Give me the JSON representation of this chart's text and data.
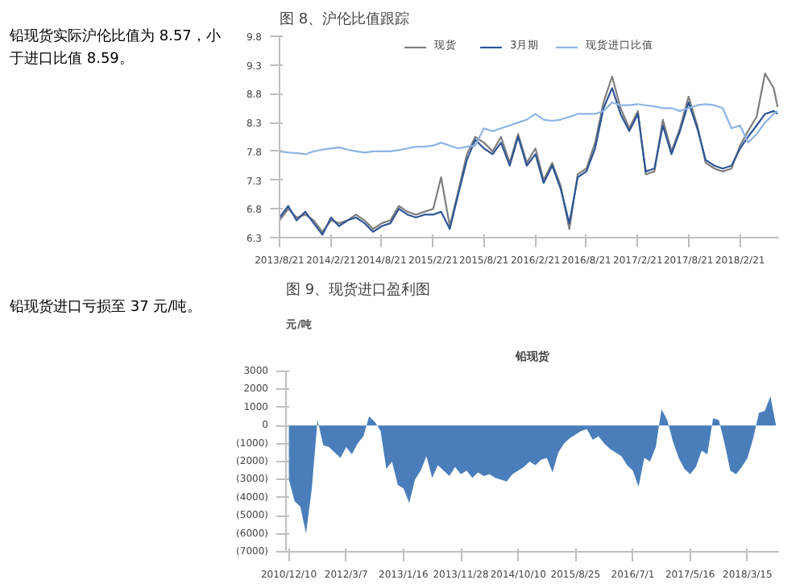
{
  "chart_data": [
    {
      "type": "line",
      "title": "图 8、沪伦比值跟踪",
      "annotations": [
        "铅现货实际沪伦比值为 8.57，小于进口比值 8.59。"
      ],
      "legend": "top",
      "x": [
        "2013-08-21",
        "2013-09-21",
        "2013-10-21",
        "2013-11-21",
        "2013-12-21",
        "2014-01-21",
        "2014-02-21",
        "2014-03-21",
        "2014-04-21",
        "2014-05-21",
        "2014-06-21",
        "2014-07-21",
        "2014-08-21",
        "2014-09-21",
        "2014-10-21",
        "2014-11-21",
        "2014-12-21",
        "2015-01-21",
        "2015-02-21",
        "2015-03-21",
        "2015-04-21",
        "2015-05-21",
        "2015-06-21",
        "2015-07-21",
        "2015-08-21",
        "2015-09-21",
        "2015-10-21",
        "2015-11-21",
        "2015-12-21",
        "2016-01-21",
        "2016-02-21",
        "2016-03-21",
        "2016-04-21",
        "2016-05-21",
        "2016-06-21",
        "2016-07-21",
        "2016-08-21",
        "2016-09-21",
        "2016-10-21",
        "2016-11-21",
        "2016-12-21",
        "2017-01-21",
        "2017-02-21",
        "2017-03-21",
        "2017-04-21",
        "2017-05-21",
        "2017-06-21",
        "2017-07-21",
        "2017-08-21",
        "2017-09-21",
        "2017-10-21",
        "2017-11-21",
        "2017-12-21",
        "2018-01-21",
        "2018-02-21",
        "2018-03-21",
        "2018-04-21",
        "2018-05-21",
        "2018-06-21",
        "2018-07-05"
      ],
      "series": [
        {
          "name": "现货",
          "color": "#7f7f7f",
          "values": [
            6.6,
            6.8,
            6.65,
            6.7,
            6.6,
            6.4,
            6.6,
            6.55,
            6.6,
            6.7,
            6.6,
            6.45,
            6.55,
            6.6,
            6.85,
            6.75,
            6.7,
            6.75,
            6.8,
            7.35,
            6.5,
            7.1,
            7.75,
            8.05,
            7.95,
            7.8,
            8.05,
            7.6,
            8.1,
            7.6,
            7.85,
            7.3,
            7.6,
            7.2,
            6.45,
            7.4,
            7.5,
            7.95,
            8.65,
            9.1,
            8.55,
            8.2,
            8.5,
            7.4,
            7.45,
            8.35,
            7.8,
            8.2,
            8.75,
            8.25,
            7.6,
            7.5,
            7.45,
            7.5,
            7.9,
            8.15,
            8.4,
            9.15,
            8.9,
            8.57
          ]
        },
        {
          "name": "3月期",
          "color": "#2e5597",
          "values": [
            6.65,
            6.85,
            6.6,
            6.75,
            6.55,
            6.35,
            6.65,
            6.5,
            6.6,
            6.65,
            6.55,
            6.4,
            6.5,
            6.55,
            6.8,
            6.7,
            6.65,
            6.7,
            6.7,
            6.75,
            6.45,
            7.05,
            7.65,
            8.0,
            7.85,
            7.75,
            7.95,
            7.55,
            8.05,
            7.55,
            7.75,
            7.25,
            7.55,
            7.15,
            6.55,
            7.35,
            7.45,
            7.85,
            8.55,
            8.9,
            8.45,
            8.15,
            8.45,
            7.45,
            7.5,
            8.25,
            7.75,
            8.15,
            8.65,
            8.2,
            7.65,
            7.55,
            7.5,
            7.55,
            7.85,
            8.05,
            8.25,
            8.45,
            8.5,
            8.45
          ]
        },
        {
          "name": "现货进口比值",
          "color": "#8eb4e3",
          "values": [
            7.8,
            7.78,
            7.77,
            7.75,
            7.8,
            7.83,
            7.85,
            7.87,
            7.83,
            7.8,
            7.78,
            7.8,
            7.8,
            7.8,
            7.82,
            7.85,
            7.88,
            7.88,
            7.9,
            7.95,
            7.9,
            7.85,
            7.88,
            7.9,
            8.2,
            8.15,
            8.2,
            8.25,
            8.3,
            8.35,
            8.45,
            8.35,
            8.33,
            8.35,
            8.4,
            8.45,
            8.45,
            8.45,
            8.5,
            8.65,
            8.6,
            8.6,
            8.62,
            8.6,
            8.58,
            8.55,
            8.55,
            8.5,
            8.55,
            8.6,
            8.62,
            8.6,
            8.55,
            8.2,
            8.25,
            7.95,
            8.1,
            8.3,
            8.45,
            8.5
          ]
        }
      ],
      "xlim": [
        "2013-08-21",
        "2018-07-10"
      ],
      "xticks": [
        {
          "value": "2013-08-21",
          "label": "2013/8/21"
        },
        {
          "value": "2014-02-21",
          "label": "2014/2/21"
        },
        {
          "value": "2014-08-21",
          "label": "2014/8/21"
        },
        {
          "value": "2015-02-21",
          "label": "2015/2/21"
        },
        {
          "value": "2015-08-21",
          "label": "2015/8/21"
        },
        {
          "value": "2016-02-21",
          "label": "2016/2/21"
        },
        {
          "value": "2016-08-21",
          "label": "2016/8/21"
        },
        {
          "value": "2017-02-21",
          "label": "2017/2/21"
        },
        {
          "value": "2017-08-21",
          "label": "2017/8/21"
        },
        {
          "value": "2018-02-21",
          "label": "2018/2/21"
        }
      ],
      "ylim": [
        6.3,
        9.8
      ],
      "yticks": [
        6.3,
        6.8,
        7.3,
        7.8,
        8.3,
        8.8,
        9.3,
        9.8
      ]
    },
    {
      "type": "area",
      "title": "图 9、现货进口盈利图",
      "subtitle": "铅现货",
      "ylabel": "元/吨",
      "annotations": [
        "铅现货进口亏损至 37 元/吨。"
      ],
      "categories": [
        "2010/12/10",
        null,
        null,
        null,
        null,
        null,
        null,
        null,
        null,
        null,
        "2012/3/7",
        null,
        null,
        null,
        null,
        null,
        null,
        null,
        null,
        null,
        "2013/1/16",
        null,
        null,
        null,
        null,
        null,
        null,
        null,
        null,
        null,
        "2013/11/28",
        null,
        null,
        null,
        null,
        null,
        null,
        null,
        null,
        null,
        "2014/10/10",
        null,
        null,
        null,
        null,
        null,
        null,
        null,
        null,
        null,
        "2015/8/25",
        null,
        null,
        null,
        null,
        null,
        null,
        null,
        null,
        null,
        "2016/7/1",
        null,
        null,
        null,
        null,
        null,
        null,
        null,
        null,
        null,
        "2017/5/16",
        null,
        null,
        null,
        null,
        null,
        null,
        null,
        null,
        null,
        "2018/3/15",
        null,
        null,
        null,
        null,
        null
      ],
      "series": [
        {
          "color": "#4a7ebb",
          "values": [
            -3000,
            -4200,
            -4500,
            -6000,
            -3500,
            300,
            -1100,
            -1200,
            -1500,
            -1800,
            -1200,
            -1600,
            -1000,
            -600,
            500,
            200,
            -300,
            -2400,
            -2000,
            -3300,
            -3500,
            -4300,
            -3000,
            -2500,
            -1700,
            -2900,
            -2200,
            -2500,
            -2800,
            -2300,
            -2700,
            -2500,
            -2900,
            -2600,
            -2800,
            -2700,
            -2900,
            -3000,
            -3100,
            -2700,
            -2500,
            -2300,
            -2000,
            -2200,
            -1900,
            -1800,
            -2600,
            -1500,
            -1000,
            -700,
            -500,
            -300,
            -200,
            -800,
            -600,
            -1000,
            -1300,
            -1500,
            -1700,
            -2200,
            -2500,
            -3400,
            -1800,
            -2000,
            -1200,
            900,
            300,
            -900,
            -1800,
            -2400,
            -2700,
            -2300,
            -1400,
            -1600,
            400,
            300,
            -1000,
            -2500,
            -2700,
            -2300,
            -1800,
            -700,
            700,
            800,
            1600,
            -37
          ]
        }
      ],
      "ylim": [
        -7000,
        3000
      ],
      "yticks": [
        {
          "value": -7000,
          "label": "(7000)"
        },
        {
          "value": -6000,
          "label": "(6000)"
        },
        {
          "value": -5000,
          "label": "(5000)"
        },
        {
          "value": -4000,
          "label": "(4000)"
        },
        {
          "value": -3000,
          "label": "(3000)"
        },
        {
          "value": -2000,
          "label": "(2000)"
        },
        {
          "value": -1000,
          "label": "(1000)"
        },
        0,
        1000,
        2000,
        3000
      ]
    }
  ]
}
